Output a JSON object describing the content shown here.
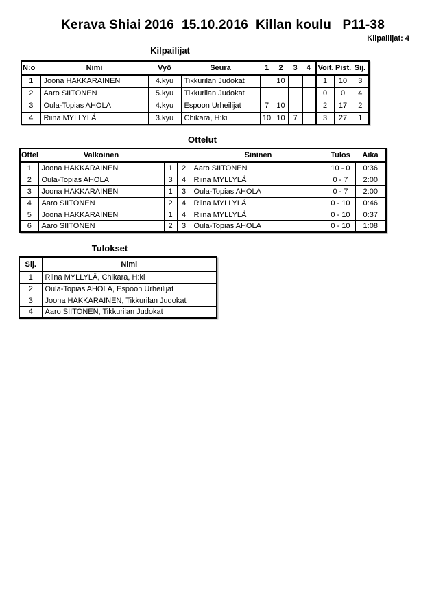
{
  "page": {
    "title": "Kerava Shiai 2016  15.10.2016  Killan koulu   P11-38",
    "competitors_count_label": "Kilpailijat: 4"
  },
  "competitors_table": {
    "heading": "Kilpailijat",
    "columns": [
      "N:o",
      "Nimi",
      "Vyö",
      "Seura",
      "1",
      "2",
      "3",
      "4",
      "Voit.",
      "Pist.",
      "Sij."
    ],
    "rows": [
      {
        "no": "1",
        "name": "Joona HAKKARAINEN",
        "belt": "4.kyu",
        "club": "Tikkurilan Judokat",
        "scores": [
          "",
          "10",
          "",
          ""
        ],
        "wins": "1",
        "points": "10",
        "place": "3"
      },
      {
        "no": "2",
        "name": "Aaro SIITONEN",
        "belt": "5.kyu",
        "club": "Tikkurilan Judokat",
        "scores": [
          "",
          "",
          "",
          ""
        ],
        "wins": "0",
        "points": "0",
        "place": "4"
      },
      {
        "no": "3",
        "name": "Oula-Topias AHOLA",
        "belt": "4.kyu",
        "club": "Espoon Urheilijat",
        "scores": [
          "7",
          "10",
          "",
          ""
        ],
        "wins": "2",
        "points": "17",
        "place": "2"
      },
      {
        "no": "4",
        "name": "Riina MYLLYLÄ",
        "belt": "3.kyu",
        "club": "Chikara, H:ki",
        "scores": [
          "10",
          "10",
          "7",
          ""
        ],
        "wins": "3",
        "points": "27",
        "place": "1"
      }
    ]
  },
  "matches_table": {
    "heading": "Ottelut",
    "columns": [
      "Ottelu",
      "Valkoinen",
      "",
      "",
      "Sininen",
      "Tulos",
      "Aika"
    ],
    "rows": [
      {
        "match": "1",
        "white": "Joona HAKKARAINEN",
        "white_no": "1",
        "blue_no": "2",
        "blue": "Aaro SIITONEN",
        "result": "10 - 0",
        "time": "0:36"
      },
      {
        "match": "2",
        "white": "Oula-Topias AHOLA",
        "white_no": "3",
        "blue_no": "4",
        "blue": "Riina MYLLYLÄ",
        "result": "0 - 7",
        "time": "2:00"
      },
      {
        "match": "3",
        "white": "Joona HAKKARAINEN",
        "white_no": "1",
        "blue_no": "3",
        "blue": "Oula-Topias AHOLA",
        "result": "0 - 7",
        "time": "2:00"
      },
      {
        "match": "4",
        "white": "Aaro SIITONEN",
        "white_no": "2",
        "blue_no": "4",
        "blue": "Riina MYLLYLÄ",
        "result": "0 - 10",
        "time": "0:46"
      },
      {
        "match": "5",
        "white": "Joona HAKKARAINEN",
        "white_no": "1",
        "blue_no": "4",
        "blue": "Riina MYLLYLÄ",
        "result": "0 - 10",
        "time": "0:37"
      },
      {
        "match": "6",
        "white": "Aaro SIITONEN",
        "white_no": "2",
        "blue_no": "3",
        "blue": "Oula-Topias AHOLA",
        "result": "0 - 10",
        "time": "1:08"
      }
    ]
  },
  "results_table": {
    "heading": "Tulokset",
    "columns": [
      "Sij.",
      "Nimi"
    ],
    "rows": [
      {
        "place": "1",
        "name": "Riina MYLLYLÄ, Chikara, H:ki"
      },
      {
        "place": "2",
        "name": "Oula-Topias AHOLA, Espoon Urheilijat"
      },
      {
        "place": "3",
        "name": "Joona HAKKARAINEN, Tikkurilan Judokat"
      },
      {
        "place": "4",
        "name": "Aaro SIITONEN, Tikkurilan Judokat"
      }
    ]
  }
}
